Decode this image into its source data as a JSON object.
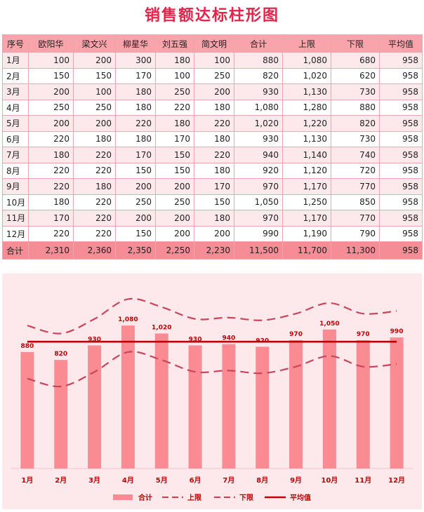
{
  "title": "销售额达标柱形图",
  "table": {
    "headers": [
      "序号",
      "欧阳华",
      "梁文兴",
      "柳星华",
      "刘五强",
      "简文明",
      "合计",
      "上限",
      "下限",
      "平均值"
    ],
    "rows": [
      [
        "1月",
        "100",
        "200",
        "300",
        "180",
        "100",
        "880",
        "1,080",
        "680",
        "958"
      ],
      [
        "2月",
        "150",
        "150",
        "170",
        "100",
        "250",
        "820",
        "1,020",
        "620",
        "958"
      ],
      [
        "3月",
        "200",
        "100",
        "180",
        "250",
        "200",
        "930",
        "1,130",
        "730",
        "958"
      ],
      [
        "4月",
        "250",
        "250",
        "180",
        "220",
        "180",
        "1,080",
        "1,280",
        "880",
        "958"
      ],
      [
        "5月",
        "200",
        "200",
        "220",
        "180",
        "220",
        "1,020",
        "1,220",
        "820",
        "958"
      ],
      [
        "6月",
        "220",
        "180",
        "180",
        "170",
        "180",
        "930",
        "1,130",
        "730",
        "958"
      ],
      [
        "7月",
        "180",
        "220",
        "170",
        "150",
        "220",
        "940",
        "1,140",
        "740",
        "958"
      ],
      [
        "8月",
        "220",
        "220",
        "150",
        "150",
        "180",
        "920",
        "1,120",
        "720",
        "958"
      ],
      [
        "9月",
        "220",
        "180",
        "200",
        "200",
        "170",
        "970",
        "1,170",
        "770",
        "958"
      ],
      [
        "10月",
        "180",
        "220",
        "250",
        "250",
        "150",
        "1,050",
        "1,250",
        "850",
        "958"
      ],
      [
        "11月",
        "170",
        "220",
        "200",
        "200",
        "180",
        "970",
        "1,170",
        "770",
        "958"
      ],
      [
        "12月",
        "220",
        "220",
        "150",
        "200",
        "200",
        "990",
        "1,190",
        "790",
        "958"
      ]
    ],
    "total": [
      "合计",
      "2,310",
      "2,360",
      "2,350",
      "2,250",
      "2,230",
      "11,500",
      "11,700",
      "11,300",
      "958"
    ]
  },
  "colors": {
    "bar": "#fa8b92",
    "upper": "#c8465b",
    "lower": "#c8465b",
    "average": "#c00000",
    "axis_text": "#c00000",
    "title": "#e0244a"
  },
  "chart_data": {
    "type": "bar",
    "categories": [
      "1月",
      "2月",
      "3月",
      "4月",
      "5月",
      "6月",
      "7月",
      "8月",
      "9月",
      "10月",
      "11月",
      "12月"
    ],
    "series": [
      {
        "name": "合计",
        "type": "bar",
        "values": [
          880,
          820,
          930,
          1080,
          1020,
          930,
          940,
          920,
          970,
          1050,
          970,
          990
        ],
        "data_labels": [
          "880",
          "820",
          "930",
          "1,080",
          "1,020",
          "930",
          "940",
          "920",
          "970",
          "1,050",
          "970",
          "990"
        ]
      },
      {
        "name": "上限",
        "type": "line-dashed",
        "values": [
          1080,
          1020,
          1130,
          1280,
          1220,
          1130,
          1140,
          1120,
          1170,
          1250,
          1170,
          1190
        ]
      },
      {
        "name": "下限",
        "type": "line-dashed",
        "values": [
          680,
          620,
          730,
          880,
          820,
          730,
          740,
          720,
          770,
          850,
          770,
          790
        ]
      },
      {
        "name": "平均值",
        "type": "line",
        "values": [
          958,
          958,
          958,
          958,
          958,
          958,
          958,
          958,
          958,
          958,
          958,
          958
        ]
      }
    ],
    "ylim": [
      0,
      1420
    ],
    "grid": false,
    "legend_position": "bottom"
  }
}
